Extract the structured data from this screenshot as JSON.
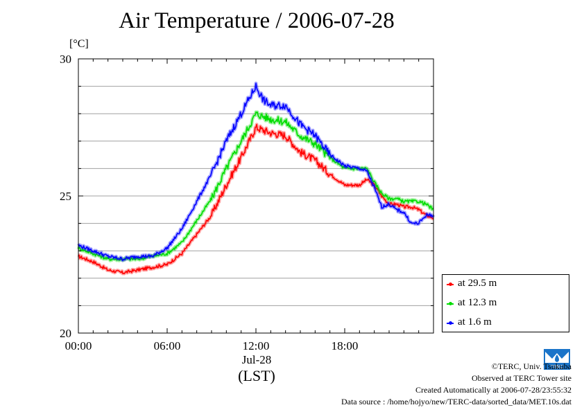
{
  "title": "Air Temperature / 2006-07-28",
  "unit_label": "[°C]",
  "x_axis": {
    "date_label": "Jul-28",
    "zone_label": "(LST)"
  },
  "legend": [
    {
      "label": "at 29.5 m",
      "color": "#ff0000"
    },
    {
      "label": "at 12.3 m",
      "color": "#00dd00"
    },
    {
      "label": "at 1.6 m",
      "color": "#0000ff"
    }
  ],
  "footer": {
    "copyright": "©TERC, Univ. Tsukuba",
    "site": "Observed at TERC Tower site",
    "created": "Created Automatically at 2006-07-28/23:55:32",
    "source": "Data source : /home/hojyo/new/TERC-data/sorted_data/MET.10s.dat"
  },
  "logo_text": "TERC",
  "chart_data": {
    "type": "line",
    "title": "Air Temperature / 2006-07-28",
    "ylabel": "[°C]",
    "xlabel": "Jul-28 (LST)",
    "xlim": [
      0,
      24
    ],
    "ylim": [
      20,
      30
    ],
    "xticks": [
      0,
      6,
      12,
      18
    ],
    "xtick_labels": [
      "00:00",
      "06:00",
      "12:00",
      "18:00"
    ],
    "yticks": [
      20,
      25,
      30
    ],
    "ytick_labels": [
      "20",
      "25",
      "30"
    ],
    "grid": true,
    "legend_position": "bottom-right",
    "x": [
      0,
      1,
      2,
      3,
      4,
      5,
      6,
      7,
      8,
      9,
      10,
      11,
      12,
      12.5,
      13,
      14,
      15,
      16,
      17,
      18,
      19,
      19.5,
      20,
      20.5,
      21,
      21.5,
      22,
      22.5,
      23,
      23.5,
      24
    ],
    "series": [
      {
        "name": "at 29.5 m",
        "color": "#ff0000",
        "values": [
          22.8,
          22.6,
          22.3,
          22.2,
          22.3,
          22.4,
          22.5,
          22.9,
          23.6,
          24.3,
          25.4,
          26.4,
          27.5,
          27.4,
          27.3,
          27.2,
          26.6,
          26.3,
          25.8,
          25.4,
          25.4,
          25.6,
          25.4,
          25.0,
          24.7,
          24.7,
          24.6,
          24.6,
          24.5,
          24.3,
          24.2
        ]
      },
      {
        "name": "at 12.3 m",
        "color": "#00dd00",
        "values": [
          23.1,
          22.9,
          22.7,
          22.7,
          22.7,
          22.8,
          22.9,
          23.3,
          24.1,
          24.9,
          26.0,
          27.0,
          28.0,
          27.9,
          27.8,
          27.7,
          27.2,
          26.9,
          26.4,
          26.0,
          26.0,
          26.0,
          25.5,
          25.1,
          24.9,
          24.9,
          24.8,
          24.8,
          24.8,
          24.7,
          24.5
        ]
      },
      {
        "name": "at 1.6 m",
        "color": "#0000ff",
        "values": [
          23.2,
          23.0,
          22.8,
          22.7,
          22.8,
          22.8,
          23.1,
          23.8,
          24.8,
          25.8,
          27.0,
          28.0,
          29.0,
          28.5,
          28.3,
          28.3,
          27.6,
          27.2,
          26.5,
          26.1,
          26.0,
          25.9,
          25.3,
          24.6,
          24.7,
          24.5,
          24.4,
          24.0,
          24.0,
          24.3,
          24.3
        ]
      }
    ]
  }
}
